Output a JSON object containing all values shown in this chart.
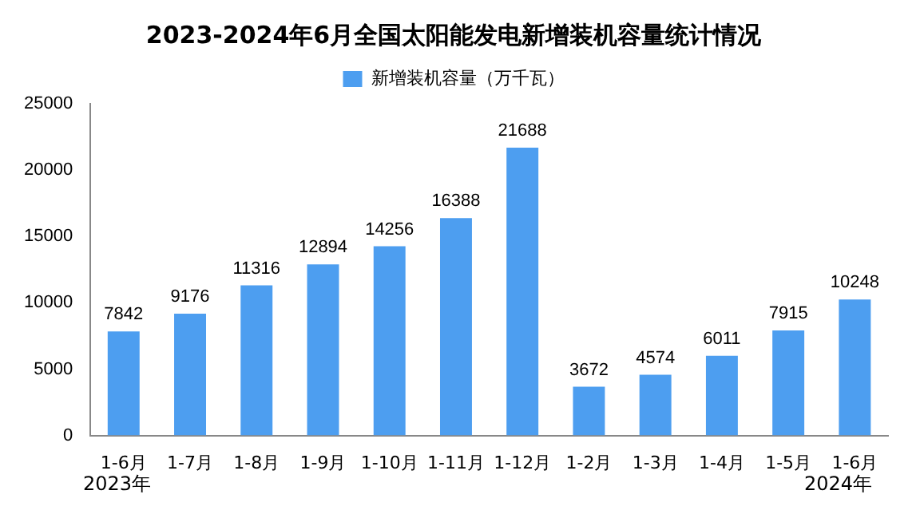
{
  "chart_data": {
    "type": "bar",
    "title": "2023-2024年6月全国太阳能发电新增装机容量统计情况",
    "categories": [
      "1-6月",
      "1-7月",
      "1-8月",
      "1-9月",
      "1-10月",
      "1-11月",
      "1-12月",
      "1-2月",
      "1-3月",
      "1-4月",
      "1-5月",
      "1-6月"
    ],
    "series": [
      {
        "name": "新增装机容量（万千瓦）",
        "color": "#4d9ef0",
        "values": [
          7842,
          9176,
          11316,
          12894,
          14256,
          16388,
          21688,
          3672,
          4574,
          6011,
          7915,
          10248
        ]
      }
    ],
    "ylim": [
      0,
      25000
    ],
    "yticks": [
      0,
      5000,
      10000,
      15000,
      20000,
      25000
    ],
    "grid": false,
    "legend": "top",
    "data_labels": true,
    "annotations": [
      "2023年",
      "2024年"
    ]
  }
}
